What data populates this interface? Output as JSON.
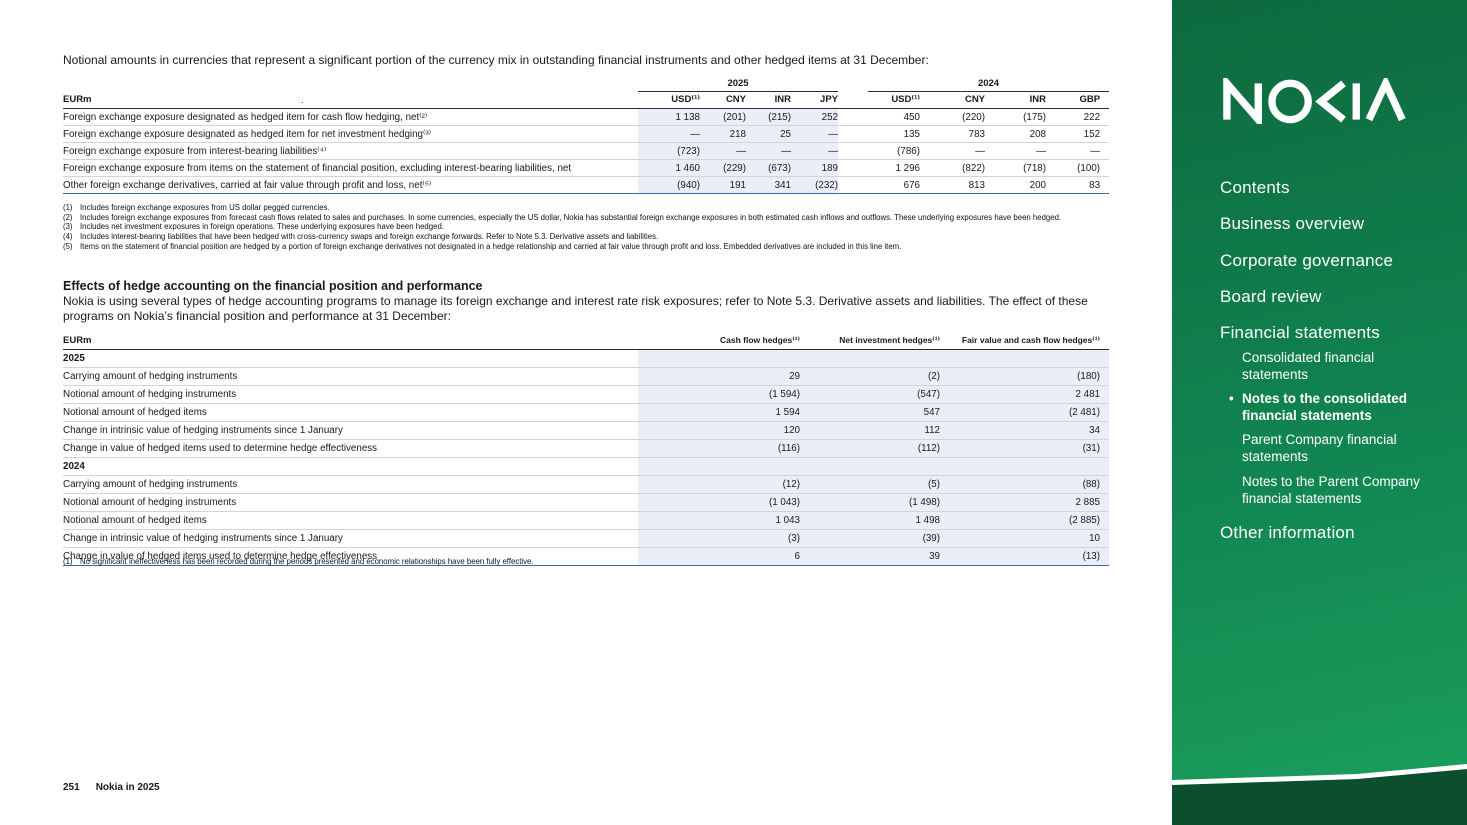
{
  "intro": "Notional amounts in currencies that represent a significant portion of the currency mix in outstanding financial instruments and other hedged items at 31 December:",
  "colors": {
    "sidebar_green_top": "#0d6a3e",
    "sidebar_green_bottom": "#1ba05c",
    "highlight_cell": "#e9eef8",
    "table_bottom_rule": "#3a67b1"
  },
  "table1": {
    "unit_label": "EURm",
    "header_dot": ".",
    "groups": [
      {
        "label": "2025",
        "columns": [
          "USD⁽¹⁾",
          "CNY",
          "INR",
          "JPY"
        ]
      },
      {
        "label": "2024",
        "columns": [
          "USD⁽¹⁾",
          "CNY",
          "INR",
          "GBP"
        ]
      }
    ],
    "rows": [
      {
        "label": "Foreign exchange exposure designated as hedged item for cash flow hedging, net⁽²⁾",
        "y2025": [
          "1 138",
          "(201)",
          "(215)",
          "252"
        ],
        "y2024": [
          "450",
          "(220)",
          "(175)",
          "222"
        ]
      },
      {
        "label": "Foreign exchange exposure designated as hedged item for net investment hedging⁽³⁾",
        "y2025": [
          "—",
          "218",
          "25",
          "—"
        ],
        "y2024": [
          "135",
          "783",
          "208",
          "152"
        ]
      },
      {
        "label": "Foreign exchange exposure from interest-bearing liabilities⁽⁴⁾",
        "y2025": [
          "(723)",
          "—",
          "—",
          "—"
        ],
        "y2024": [
          "(786)",
          "—",
          "—",
          "—"
        ]
      },
      {
        "label": "Foreign exchange exposure from items on the statement of financial position, excluding interest-bearing liabilities, net",
        "y2025": [
          "1 460",
          "(229)",
          "(673)",
          "189"
        ],
        "y2024": [
          "1 296",
          "(822)",
          "(718)",
          "(100)"
        ]
      },
      {
        "label": "Other foreign exchange derivatives, carried at fair value through profit and loss, net⁽⁵⁾",
        "y2025": [
          "(940)",
          "191",
          "341",
          "(232)"
        ],
        "y2024": [
          "676",
          "813",
          "200",
          "83"
        ]
      }
    ],
    "footnotes": [
      {
        "marker": "(1)",
        "text": "Includes foreign exchange exposures from US dollar pegged currencies."
      },
      {
        "marker": "(2)",
        "text": "Includes foreign exchange exposures from forecast cash flows related to sales and purchases. In some currencies, especially the US dollar, Nokia has substantial foreign exchange exposures in both estimated cash inflows and outflows. These underlying exposures have been hedged."
      },
      {
        "marker": "(3)",
        "text": "Includes net investment exposures in foreign operations. These underlying exposures have been hedged."
      },
      {
        "marker": "(4)",
        "text": "Includes interest-bearing liabilities that have been hedged with cross-currency swaps and foreign exchange forwards. Refer to Note 5.3. Derivative assets and liabilities."
      },
      {
        "marker": "(5)",
        "text": "Items on the statement of financial position are hedged by a portion of foreign exchange derivatives not designated in a hedge relationship and carried at fair value through profit and loss. Embedded derivatives are included in this line item."
      }
    ]
  },
  "section": {
    "heading": "Effects of hedge accounting on the financial position and performance",
    "body": "Nokia is using several types of hedge accounting programs to manage its foreign exchange and interest rate risk exposures; refer to Note 5.3. Derivative assets and liabilities. The effect of these programs on Nokia’s financial position and performance at 31 December:"
  },
  "table2": {
    "unit_label": "EURm",
    "columns": [
      "Cash flow hedges⁽¹⁾",
      "Net investment hedges⁽¹⁾",
      "Fair value and cash flow hedges⁽¹⁾"
    ],
    "sections": [
      {
        "year": "2025",
        "rows": [
          {
            "label": "Carrying amount of hedging instruments",
            "values": [
              "29",
              "(2)",
              "(180)"
            ]
          },
          {
            "label": "Notional amount of hedging instruments",
            "values": [
              "(1 594)",
              "(547)",
              "2 481"
            ]
          },
          {
            "label": "Notional amount of hedged items",
            "values": [
              "1 594",
              "547",
              "(2 481)"
            ]
          },
          {
            "label": "Change in intrinsic value of hedging instruments since 1 January",
            "values": [
              "120",
              "112",
              "34"
            ]
          },
          {
            "label": "Change in value of hedged items used to determine hedge effectiveness",
            "values": [
              "(116)",
              "(112)",
              "(31)"
            ]
          }
        ]
      },
      {
        "year": "2024",
        "rows": [
          {
            "label": "Carrying amount of hedging instruments",
            "values": [
              "(12)",
              "(5)",
              "(88)"
            ]
          },
          {
            "label": "Notional amount of hedging instruments",
            "values": [
              "(1 043)",
              "(1 498)",
              "2 885"
            ]
          },
          {
            "label": "Notional amount of hedged items",
            "values": [
              "1 043",
              "1 498",
              "(2 885)"
            ]
          },
          {
            "label": "Change in intrinsic value of hedging instruments since 1 January",
            "values": [
              "(3)",
              "(39)",
              "10"
            ]
          },
          {
            "label": "Change in value of hedged items used to determine hedge effectiveness",
            "values": [
              "6",
              "39",
              "(13)"
            ]
          }
        ]
      }
    ],
    "footnote": {
      "marker": "(1)",
      "text": "No significant ineffectiveness has been recorded during the periods presented and economic relationships have been fully effective."
    }
  },
  "sidebar": {
    "logo_name": "NOKIA",
    "active_bullet": "•",
    "items": [
      {
        "label": "Contents"
      },
      {
        "label": "Business overview"
      },
      {
        "label": "Corporate governance"
      },
      {
        "label": "Board review"
      },
      {
        "label": "Financial statements"
      },
      {
        "label": "Other information"
      }
    ],
    "subitems": [
      {
        "label": "Consolidated financial statements",
        "active": false
      },
      {
        "label": "Notes to the consolidated financial statements",
        "active": true
      },
      {
        "label": "Parent Company financial statements",
        "active": false
      },
      {
        "label": "Notes to the Parent Company financial statements",
        "active": false
      }
    ]
  },
  "footer": {
    "page_number": "251",
    "title": "Nokia in 2025"
  }
}
